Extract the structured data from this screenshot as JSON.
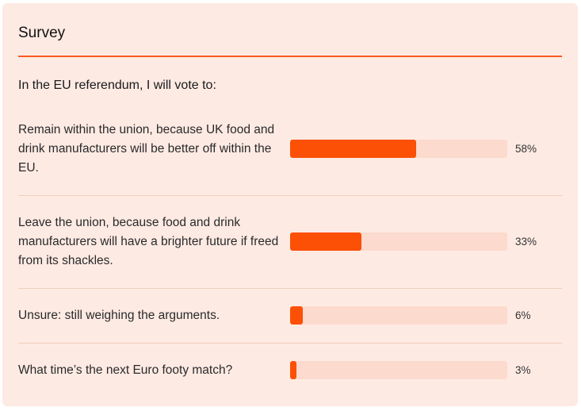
{
  "survey": {
    "title": "Survey",
    "question": "In the EU referendum, I will vote to:",
    "accent_color": "#fb5005",
    "track_color": "#fcdacd",
    "options": [
      {
        "label": "Remain within the union, because UK food and drink manufacturers will be better off within the EU.",
        "percent_label": "58%",
        "fraction": 0.58
      },
      {
        "label": "Leave the union, because food and drink manufacturers will have a brighter future if freed from its shackles.",
        "percent_label": "33%",
        "fraction": 0.33
      },
      {
        "label": "Unsure: still weighing the arguments.",
        "percent_label": "6%",
        "fraction": 0.06
      },
      {
        "label": "What time’s the next Euro footy match?",
        "percent_label": "3%",
        "fraction": 0.03
      }
    ]
  }
}
